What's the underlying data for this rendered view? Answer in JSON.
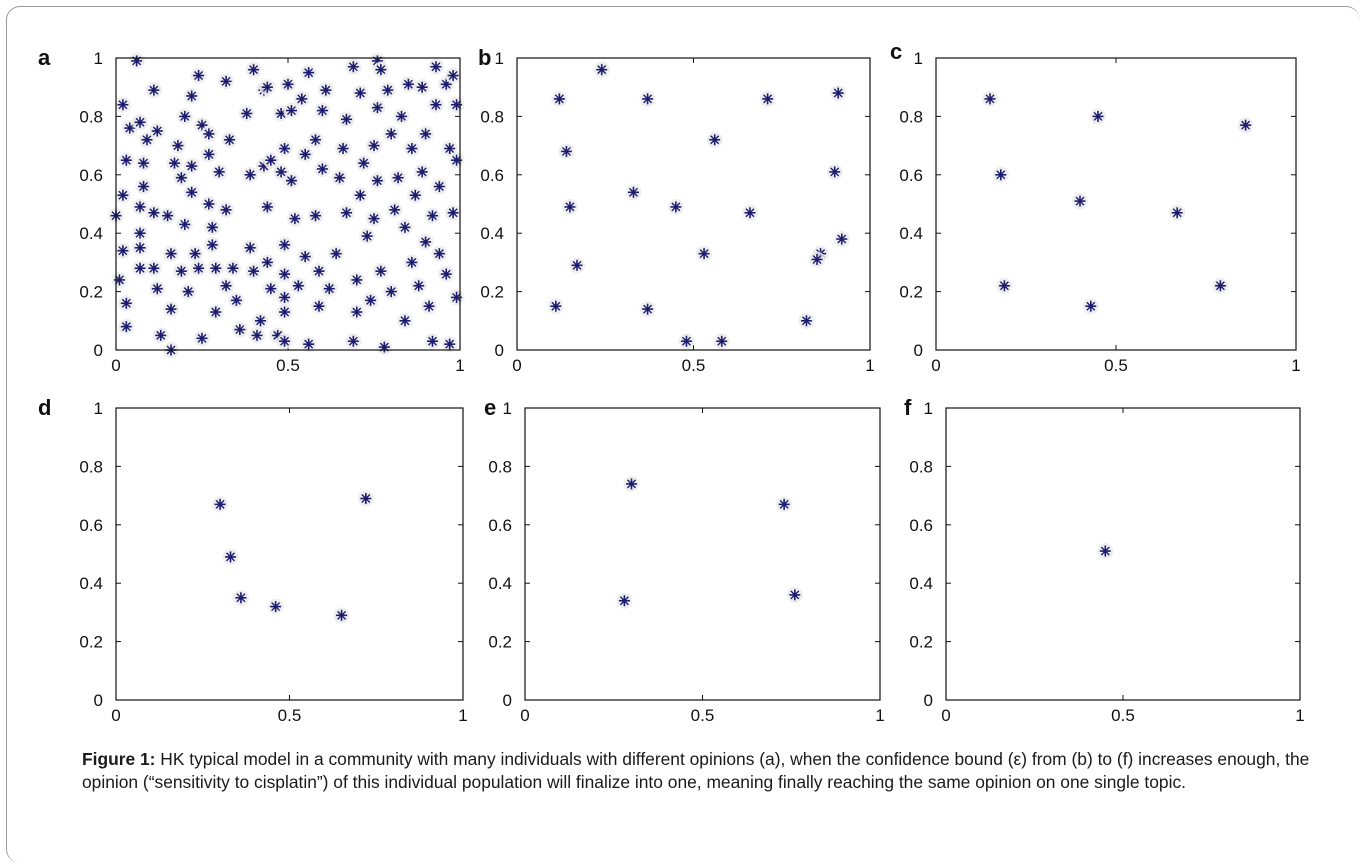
{
  "figure": {
    "caption_label": "Figure 1:",
    "caption_text": " HK typical model in a community with many individuals with different opinions (a), when the confidence bound (ε) from (b) to (f) increases enough, the opinion (“sensitivity to cisplatin”) of this individual population will finalize into one, meaning finally reaching the same opinion on one single topic.",
    "marker_color": "#1c1c6e"
  },
  "chart_data": [
    {
      "panel": "a",
      "type": "scatter",
      "marker": "*",
      "xlim": [
        0,
        1
      ],
      "ylim": [
        0,
        1
      ],
      "xticks": [
        "0",
        "0.5",
        "1"
      ],
      "yticks": [
        "0",
        "0.2",
        "0.4",
        "0.6",
        "0.8",
        "1"
      ],
      "points": [
        [
          0.06,
          0.99
        ],
        [
          0.76,
          0.99
        ],
        [
          0.02,
          0.84
        ],
        [
          0.04,
          0.76
        ],
        [
          0.03,
          0.65
        ],
        [
          0.02,
          0.53
        ],
        [
          0.0,
          0.46
        ],
        [
          0.02,
          0.34
        ],
        [
          0.01,
          0.24
        ],
        [
          0.03,
          0.16
        ],
        [
          0.03,
          0.08
        ],
        [
          0.07,
          0.78
        ],
        [
          0.08,
          0.64
        ],
        [
          0.08,
          0.56
        ],
        [
          0.07,
          0.49
        ],
        [
          0.07,
          0.4
        ],
        [
          0.07,
          0.35
        ],
        [
          0.07,
          0.28
        ],
        [
          0.09,
          0.72
        ],
        [
          0.11,
          0.89
        ],
        [
          0.12,
          0.75
        ],
        [
          0.11,
          0.47
        ],
        [
          0.11,
          0.28
        ],
        [
          0.12,
          0.21
        ],
        [
          0.13,
          0.05
        ],
        [
          0.15,
          0.46
        ],
        [
          0.16,
          0.33
        ],
        [
          0.16,
          0.14
        ],
        [
          0.16,
          0.0
        ],
        [
          0.17,
          0.64
        ],
        [
          0.18,
          0.7
        ],
        [
          0.19,
          0.59
        ],
        [
          0.2,
          0.8
        ],
        [
          0.2,
          0.43
        ],
        [
          0.19,
          0.27
        ],
        [
          0.21,
          0.2
        ],
        [
          0.22,
          0.87
        ],
        [
          0.22,
          0.63
        ],
        [
          0.22,
          0.54
        ],
        [
          0.23,
          0.33
        ],
        [
          0.24,
          0.94
        ],
        [
          0.25,
          0.77
        ],
        [
          0.24,
          0.28
        ],
        [
          0.25,
          0.04
        ],
        [
          0.27,
          0.74
        ],
        [
          0.27,
          0.67
        ],
        [
          0.27,
          0.5
        ],
        [
          0.28,
          0.42
        ],
        [
          0.28,
          0.36
        ],
        [
          0.29,
          0.28
        ],
        [
          0.29,
          0.13
        ],
        [
          0.3,
          0.61
        ],
        [
          0.32,
          0.92
        ],
        [
          0.32,
          0.22
        ],
        [
          0.33,
          0.72
        ],
        [
          0.32,
          0.48
        ],
        [
          0.34,
          0.28
        ],
        [
          0.35,
          0.17
        ],
        [
          0.36,
          0.07
        ],
        [
          0.38,
          0.81
        ],
        [
          0.39,
          0.6
        ],
        [
          0.39,
          0.35
        ],
        [
          0.4,
          0.96
        ],
        [
          0.4,
          0.27
        ],
        [
          0.41,
          0.05
        ],
        [
          0.42,
          0.1
        ],
        [
          0.43,
          0.89
        ],
        [
          0.43,
          0.63
        ],
        [
          0.44,
          0.49
        ],
        [
          0.44,
          0.9
        ],
        [
          0.44,
          0.3
        ],
        [
          0.45,
          0.65
        ],
        [
          0.45,
          0.21
        ],
        [
          0.47,
          0.05
        ],
        [
          0.48,
          0.81
        ],
        [
          0.48,
          0.61
        ],
        [
          0.49,
          0.36
        ],
        [
          0.49,
          0.69
        ],
        [
          0.49,
          0.26
        ],
        [
          0.49,
          0.18
        ],
        [
          0.49,
          0.13
        ],
        [
          0.49,
          0.03
        ],
        [
          0.5,
          0.91
        ],
        [
          0.51,
          0.58
        ],
        [
          0.51,
          0.82
        ],
        [
          0.52,
          0.45
        ],
        [
          0.53,
          0.22
        ],
        [
          0.54,
          0.86
        ],
        [
          0.55,
          0.67
        ],
        [
          0.55,
          0.32
        ],
        [
          0.56,
          0.95
        ],
        [
          0.56,
          0.02
        ],
        [
          0.58,
          0.46
        ],
        [
          0.58,
          0.72
        ],
        [
          0.59,
          0.27
        ],
        [
          0.59,
          0.15
        ],
        [
          0.6,
          0.82
        ],
        [
          0.6,
          0.62
        ],
        [
          0.61,
          0.89
        ],
        [
          0.62,
          0.21
        ],
        [
          0.64,
          0.33
        ],
        [
          0.65,
          0.59
        ],
        [
          0.66,
          0.69
        ],
        [
          0.67,
          0.79
        ],
        [
          0.67,
          0.47
        ],
        [
          0.69,
          0.97
        ],
        [
          0.69,
          0.03
        ],
        [
          0.7,
          0.24
        ],
        [
          0.7,
          0.13
        ],
        [
          0.71,
          0.53
        ],
        [
          0.71,
          0.88
        ],
        [
          0.72,
          0.64
        ],
        [
          0.73,
          0.39
        ],
        [
          0.74,
          0.17
        ],
        [
          0.75,
          0.7
        ],
        [
          0.75,
          0.45
        ],
        [
          0.76,
          0.83
        ],
        [
          0.77,
          0.96
        ],
        [
          0.76,
          0.58
        ],
        [
          0.77,
          0.27
        ],
        [
          0.78,
          0.01
        ],
        [
          0.79,
          0.89
        ],
        [
          0.8,
          0.74
        ],
        [
          0.8,
          0.2
        ],
        [
          0.81,
          0.48
        ],
        [
          0.82,
          0.59
        ],
        [
          0.83,
          0.8
        ],
        [
          0.84,
          0.42
        ],
        [
          0.84,
          0.1
        ],
        [
          0.85,
          0.91
        ],
        [
          0.86,
          0.69
        ],
        [
          0.86,
          0.3
        ],
        [
          0.87,
          0.53
        ],
        [
          0.88,
          0.22
        ],
        [
          0.89,
          0.9
        ],
        [
          0.89,
          0.61
        ],
        [
          0.9,
          0.74
        ],
        [
          0.9,
          0.37
        ],
        [
          0.91,
          0.15
        ],
        [
          0.92,
          0.46
        ],
        [
          0.92,
          0.03
        ],
        [
          0.93,
          0.97
        ],
        [
          0.93,
          0.84
        ],
        [
          0.94,
          0.56
        ],
        [
          0.94,
          0.33
        ],
        [
          0.96,
          0.91
        ],
        [
          0.97,
          0.69
        ],
        [
          0.96,
          0.26
        ],
        [
          0.97,
          0.02
        ],
        [
          0.98,
          0.94
        ],
        [
          0.98,
          0.47
        ],
        [
          0.99,
          0.84
        ],
        [
          0.99,
          0.65
        ],
        [
          0.99,
          0.18
        ]
      ]
    },
    {
      "panel": "b",
      "type": "scatter",
      "marker": "*",
      "xlim": [
        0,
        1
      ],
      "ylim": [
        0,
        1
      ],
      "xticks": [
        "0",
        "0.5",
        "1"
      ],
      "yticks": [
        "0",
        "0.2",
        "0.4",
        "0.6",
        "0.8",
        "1"
      ],
      "points": [
        [
          0.24,
          0.96
        ],
        [
          0.12,
          0.86
        ],
        [
          0.37,
          0.86
        ],
        [
          0.71,
          0.86
        ],
        [
          0.91,
          0.88
        ],
        [
          0.56,
          0.72
        ],
        [
          0.14,
          0.68
        ],
        [
          0.9,
          0.61
        ],
        [
          0.33,
          0.54
        ],
        [
          0.15,
          0.49
        ],
        [
          0.45,
          0.49
        ],
        [
          0.66,
          0.47
        ],
        [
          0.92,
          0.38
        ],
        [
          0.53,
          0.33
        ],
        [
          0.86,
          0.33
        ],
        [
          0.85,
          0.31
        ],
        [
          0.17,
          0.29
        ],
        [
          0.11,
          0.15
        ],
        [
          0.37,
          0.14
        ],
        [
          0.82,
          0.1
        ],
        [
          0.48,
          0.03
        ],
        [
          0.58,
          0.03
        ]
      ]
    },
    {
      "panel": "c",
      "type": "scatter",
      "marker": "*",
      "xlim": [
        0,
        1
      ],
      "ylim": [
        0,
        1
      ],
      "xticks": [
        "0",
        "0.5",
        "1"
      ],
      "yticks": [
        "0",
        "0.2",
        "0.4",
        "0.6",
        "0.8",
        "1"
      ],
      "points": [
        [
          0.15,
          0.86
        ],
        [
          0.45,
          0.8
        ],
        [
          0.86,
          0.77
        ],
        [
          0.18,
          0.6
        ],
        [
          0.4,
          0.51
        ],
        [
          0.67,
          0.47
        ],
        [
          0.19,
          0.22
        ],
        [
          0.79,
          0.22
        ],
        [
          0.43,
          0.15
        ]
      ]
    },
    {
      "panel": "d",
      "type": "scatter",
      "marker": "*",
      "xlim": [
        0,
        1
      ],
      "ylim": [
        0,
        1
      ],
      "xticks": [
        "0",
        "0.5",
        "1"
      ],
      "yticks": [
        "0",
        "0.2",
        "0.4",
        "0.6",
        "0.8",
        "1"
      ],
      "points": [
        [
          0.72,
          0.69
        ],
        [
          0.3,
          0.67
        ],
        [
          0.33,
          0.49
        ],
        [
          0.36,
          0.35
        ],
        [
          0.46,
          0.32
        ],
        [
          0.65,
          0.29
        ]
      ]
    },
    {
      "panel": "e",
      "type": "scatter",
      "marker": "*",
      "xlim": [
        0,
        1
      ],
      "ylim": [
        0,
        1
      ],
      "xticks": [
        "0",
        "0.5",
        "1"
      ],
      "yticks": [
        "0",
        "0.2",
        "0.4",
        "0.6",
        "0.8",
        "1"
      ],
      "points": [
        [
          0.3,
          0.74
        ],
        [
          0.73,
          0.67
        ],
        [
          0.76,
          0.36
        ],
        [
          0.28,
          0.34
        ]
      ]
    },
    {
      "panel": "f",
      "type": "scatter",
      "marker": "*",
      "xlim": [
        0,
        1
      ],
      "ylim": [
        0,
        1
      ],
      "xticks": [
        "0",
        "0.5",
        "1"
      ],
      "yticks": [
        "0",
        "0.2",
        "0.4",
        "0.6",
        "0.8",
        "1"
      ],
      "points": [
        [
          0.45,
          0.51
        ]
      ]
    }
  ]
}
